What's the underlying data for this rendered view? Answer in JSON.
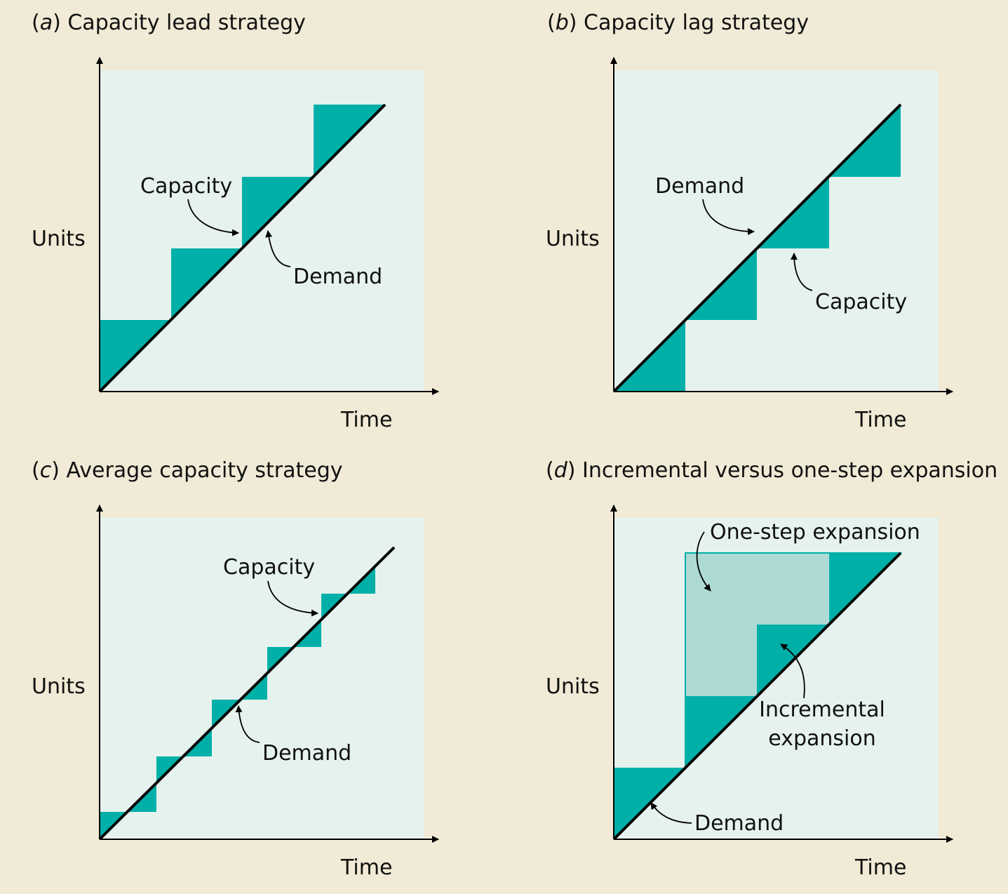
{
  "colors": {
    "page_background": "#f0ead6",
    "panel_background": "#e6f2ee",
    "capacity_fill": "#00b0a8",
    "one_step_fill": "#aedad4",
    "line": "#000000"
  },
  "panels": [
    {
      "letter": "a",
      "title": "Capacity lead strategy",
      "y_axis_label": "Units",
      "x_axis_label": "Time",
      "annotations": [
        "Capacity",
        "Demand"
      ]
    },
    {
      "letter": "b",
      "title": "Capacity lag strategy",
      "y_axis_label": "Units",
      "x_axis_label": "Time",
      "annotations": [
        "Demand",
        "Capacity"
      ]
    },
    {
      "letter": "c",
      "title": "Average capacity strategy",
      "y_axis_label": "Units",
      "x_axis_label": "Time",
      "annotations": [
        "Capacity",
        "Demand"
      ]
    },
    {
      "letter": "d",
      "title": "Incremental versus one-step expansion",
      "y_axis_label": "Units",
      "x_axis_label": "Time",
      "annotations": [
        "One-step expansion",
        "Incremental",
        "expansion",
        "Demand"
      ]
    }
  ]
}
